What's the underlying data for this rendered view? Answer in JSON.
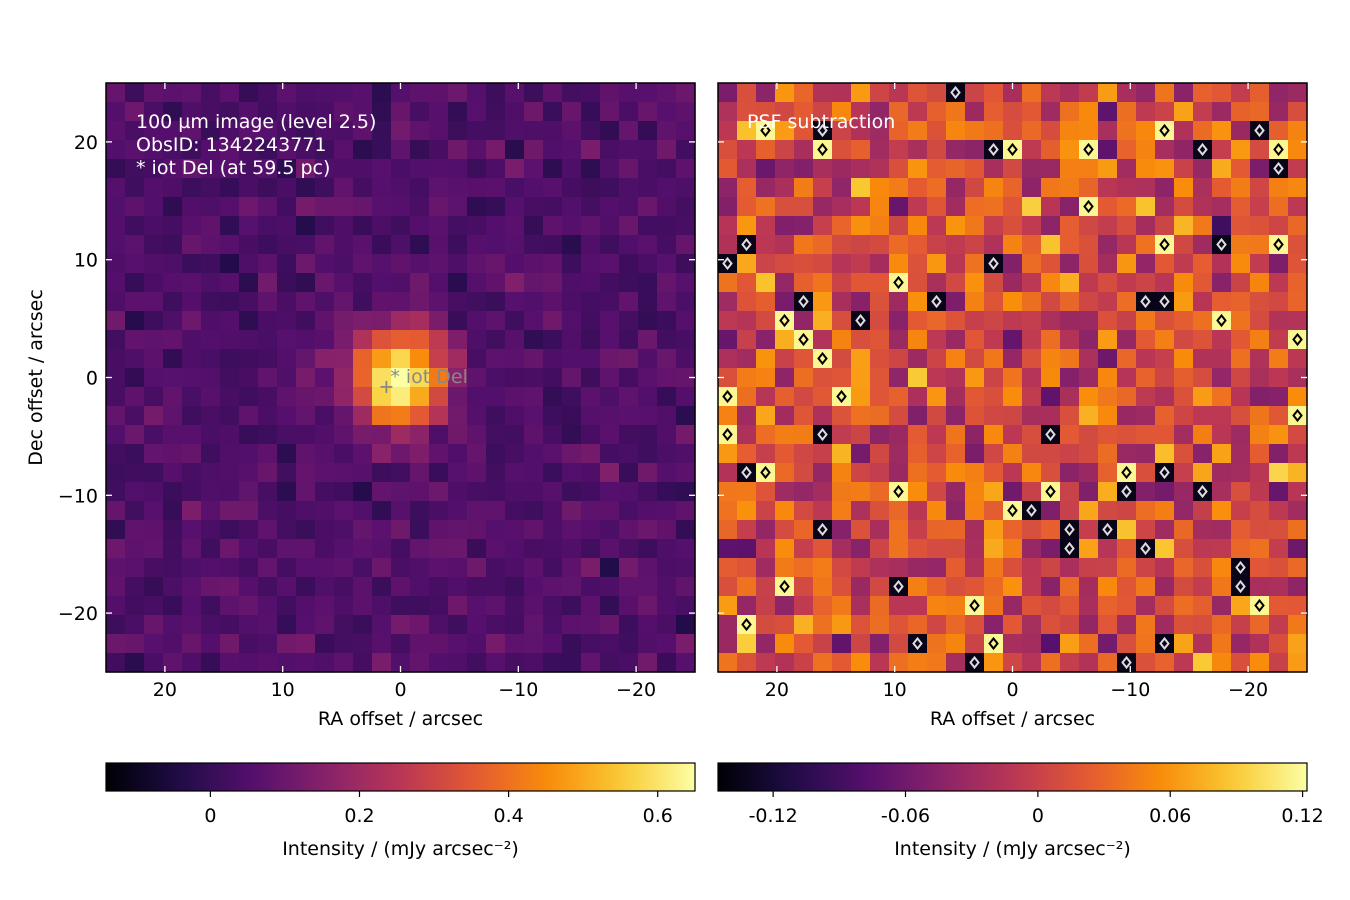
{
  "chart_data": [
    {
      "type": "heatmap",
      "panel": "left",
      "annotations": [
        "100 µm image (level 2.5)",
        "ObsID: 1342243771",
        "* iot Del (at 59.5 pc)"
      ],
      "source_marker": {
        "label": "* iot Del",
        "x": 1.2,
        "y": -0.8
      },
      "xlabel": "RA offset / arcsec",
      "ylabel": "Dec offset / arcsec",
      "xlim": [
        25,
        -25
      ],
      "ylim": [
        -25,
        25
      ],
      "xticks": [
        20,
        10,
        0,
        -10,
        -20
      ],
      "xtick_labels": [
        "20",
        "10",
        "0",
        "−10",
        "−20"
      ],
      "yticks": [
        20,
        10,
        0,
        -10,
        -20
      ],
      "ytick_labels": [
        "20",
        "10",
        "0",
        "−10",
        "−20"
      ],
      "grid_cells": 31,
      "colormap": "inferno",
      "source_peak": {
        "x": 0,
        "y": 0,
        "peak": 0.65,
        "fwhm_arcsec": 6.5
      },
      "background_mean": 0.05,
      "colorbar": {
        "range": [
          -0.14,
          0.65
        ],
        "ticks": [
          0,
          0.2,
          0.4,
          0.6
        ],
        "tick_labels": [
          "0",
          "0.2",
          "0.4",
          "0.6"
        ],
        "label": "Intensity / (mJy arcsec⁻²)"
      }
    },
    {
      "type": "heatmap",
      "panel": "right",
      "annotations": [
        "PSF subtraction"
      ],
      "xlabel": "RA offset / arcsec",
      "xlim": [
        25,
        -25
      ],
      "ylim": [
        -25,
        25
      ],
      "xticks": [
        20,
        10,
        0,
        -10,
        -20
      ],
      "xtick_labels": [
        "20",
        "10",
        "0",
        "−10",
        "−20"
      ],
      "grid_cells": 31,
      "colormap": "inferno",
      "residual_mean": 0.01,
      "contours": {
        "colors": [
          "#000000",
          "#dddddd"
        ]
      },
      "colorbar": {
        "range": [
          -0.145,
          0.122
        ],
        "ticks": [
          -0.12,
          -0.06,
          0,
          0.06,
          0.12
        ],
        "tick_labels": [
          "-0.12",
          "-0.06",
          "0",
          "0.06",
          "0.12"
        ],
        "label": "Intensity / (mJy arcsec⁻²)"
      }
    }
  ]
}
